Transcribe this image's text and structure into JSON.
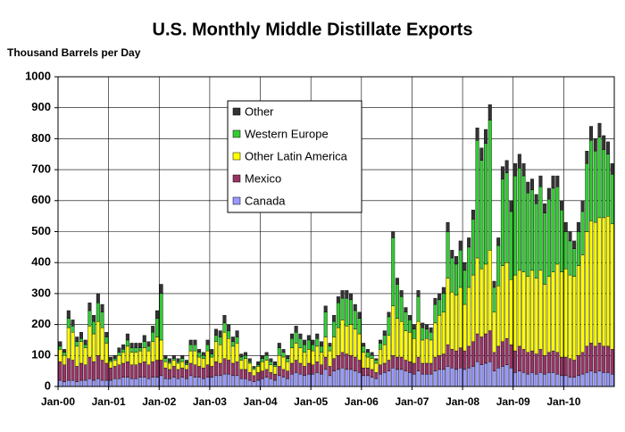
{
  "chart_data": {
    "type": "stacked-bar",
    "title": "U.S. Monthly Middle Distillate Exports",
    "y_label": "Thousand Barrels per Day",
    "categories": [
      "Jan-00",
      null,
      null,
      null,
      null,
      null,
      null,
      null,
      null,
      null,
      null,
      null,
      "Jan-01",
      null,
      null,
      null,
      null,
      null,
      null,
      null,
      null,
      null,
      null,
      null,
      "Jan-02",
      null,
      null,
      null,
      null,
      null,
      null,
      null,
      null,
      null,
      null,
      null,
      "Jan-03",
      null,
      null,
      null,
      null,
      null,
      null,
      null,
      null,
      null,
      null,
      null,
      "Jan-04",
      null,
      null,
      null,
      null,
      null,
      null,
      null,
      null,
      null,
      null,
      null,
      "Jan-05",
      null,
      null,
      null,
      null,
      null,
      null,
      null,
      null,
      null,
      null,
      null,
      "Jan-06",
      null,
      null,
      null,
      null,
      null,
      null,
      null,
      null,
      null,
      null,
      null,
      "Jan-07",
      null,
      null,
      null,
      null,
      null,
      null,
      null,
      null,
      null,
      null,
      null,
      "Jan-08",
      null,
      null,
      null,
      null,
      null,
      null,
      null,
      null,
      null,
      null,
      null,
      "Jan-09",
      null,
      null,
      null,
      null,
      null,
      null,
      null,
      null,
      null,
      null,
      null,
      "Jan-10",
      null,
      null,
      null,
      null,
      null,
      null,
      null,
      null,
      null,
      null,
      null
    ],
    "series": [
      {
        "name": "Canada",
        "color": "#9999ff",
        "values": [
          20,
          15,
          20,
          20,
          15,
          20,
          20,
          25,
          20,
          25,
          20,
          20,
          20,
          25,
          25,
          30,
          30,
          25,
          25,
          30,
          30,
          25,
          30,
          30,
          35,
          25,
          25,
          30,
          25,
          30,
          25,
          35,
          30,
          30,
          25,
          30,
          30,
          35,
          35,
          40,
          40,
          35,
          35,
          25,
          25,
          20,
          15,
          20,
          25,
          30,
          25,
          20,
          35,
          30,
          25,
          40,
          45,
          40,
          35,
          40,
          40,
          45,
          40,
          55,
          35,
          50,
          55,
          60,
          55,
          55,
          50,
          45,
          35,
          35,
          30,
          25,
          40,
          45,
          50,
          60,
          55,
          55,
          50,
          45,
          40,
          50,
          40,
          40,
          40,
          50,
          55,
          55,
          65,
          60,
          55,
          60,
          55,
          60,
          65,
          80,
          70,
          75,
          80,
          50,
          60,
          65,
          70,
          60,
          45,
          50,
          45,
          40,
          45,
          40,
          45,
          40,
          45,
          45,
          40,
          35,
          35,
          30,
          30,
          35,
          40,
          45,
          50,
          45,
          50,
          45,
          45,
          40
        ]
      },
      {
        "name": "Mexico",
        "color": "#993366",
        "values": [
          60,
          55,
          70,
          65,
          50,
          55,
          50,
          70,
          60,
          75,
          65,
          55,
          40,
          40,
          45,
          45,
          50,
          45,
          45,
          45,
          50,
          45,
          50,
          55,
          50,
          35,
          30,
          35,
          30,
          30,
          30,
          40,
          40,
          35,
          35,
          40,
          35,
          45,
          40,
          50,
          45,
          40,
          45,
          30,
          30,
          25,
          20,
          25,
          25,
          25,
          20,
          20,
          30,
          25,
          25,
          35,
          40,
          35,
          30,
          35,
          30,
          35,
          30,
          40,
          30,
          40,
          45,
          50,
          50,
          45,
          45,
          40,
          25,
          25,
          25,
          20,
          30,
          30,
          35,
          40,
          40,
          40,
          35,
          35,
          35,
          45,
          35,
          35,
          35,
          45,
          45,
          50,
          70,
          60,
          60,
          65,
          60,
          70,
          80,
          90,
          90,
          95,
          100,
          60,
          70,
          80,
          85,
          75,
          70,
          80,
          75,
          70,
          70,
          65,
          75,
          60,
          65,
          70,
          70,
          60,
          60,
          60,
          55,
          65,
          70,
          85,
          90,
          85,
          90,
          85,
          85,
          80
        ]
      },
      {
        "name": "Other Latin America",
        "color": "#ffff00",
        "values": [
          40,
          30,
          100,
          90,
          65,
          70,
          55,
          100,
          90,
          110,
          105,
          65,
          20,
          20,
          30,
          35,
          50,
          40,
          40,
          40,
          45,
          45,
          65,
          75,
          65,
          20,
          20,
          20,
          20,
          20,
          15,
          40,
          45,
          30,
          30,
          45,
          30,
          65,
          60,
          85,
          70,
          55,
          60,
          30,
          35,
          30,
          20,
          20,
          30,
          30,
          25,
          25,
          35,
          40,
          30,
          50,
          55,
          50,
          45,
          45,
          45,
          50,
          40,
          65,
          50,
          70,
          90,
          105,
          90,
          100,
          90,
          85,
          50,
          35,
          35,
          30,
          50,
          60,
          80,
          160,
          125,
          115,
          95,
          95,
          80,
          115,
          75,
          80,
          75,
          110,
          130,
          135,
          215,
          185,
          180,
          195,
          150,
          190,
          215,
          245,
          220,
          225,
          260,
          130,
          195,
          245,
          245,
          210,
          245,
          245,
          250,
          245,
          260,
          245,
          255,
          230,
          245,
          255,
          285,
          275,
          285,
          270,
          270,
          290,
          315,
          370,
          395,
          400,
          405,
          415,
          420,
          405
        ]
      },
      {
        "name": "Western Europe",
        "color": "#33cc33",
        "values": [
          10,
          10,
          30,
          20,
          15,
          10,
          10,
          50,
          40,
          60,
          50,
          20,
          5,
          5,
          10,
          10,
          20,
          15,
          15,
          10,
          20,
          15,
          30,
          60,
          150,
          10,
          5,
          5,
          5,
          10,
          5,
          20,
          20,
          15,
          10,
          20,
          10,
          20,
          25,
          30,
          25,
          15,
          20,
          10,
          10,
          5,
          5,
          5,
          10,
          15,
          10,
          5,
          25,
          15,
          10,
          30,
          35,
          30,
          25,
          30,
          20,
          25,
          20,
          80,
          15,
          50,
          80,
          70,
          90,
          80,
          60,
          50,
          20,
          15,
          10,
          10,
          20,
          30,
          60,
          220,
          110,
          80,
          60,
          40,
          30,
          80,
          40,
          30,
          25,
          60,
          50,
          60,
          150,
          110,
          100,
          120,
          110,
          130,
          180,
          380,
          350,
          390,
          420,
          80,
          130,
          280,
          290,
          220,
          320,
          330,
          310,
          270,
          260,
          240,
          270,
          230,
          250,
          270,
          250,
          200,
          120,
          110,
          90,
          110,
          140,
          220,
          260,
          230,
          260,
          220,
          200,
          160
        ]
      },
      {
        "name": "Other",
        "color": "#333333",
        "values": [
          15,
          10,
          25,
          20,
          15,
          20,
          15,
          25,
          20,
          30,
          25,
          15,
          10,
          10,
          15,
          15,
          20,
          15,
          15,
          15,
          20,
          15,
          20,
          25,
          30,
          10,
          10,
          10,
          10,
          10,
          10,
          15,
          15,
          10,
          10,
          15,
          15,
          20,
          20,
          25,
          20,
          15,
          20,
          10,
          10,
          10,
          5,
          10,
          10,
          10,
          10,
          10,
          15,
          10,
          10,
          15,
          20,
          15,
          15,
          15,
          15,
          15,
          15,
          20,
          10,
          20,
          20,
          25,
          25,
          20,
          20,
          20,
          10,
          10,
          10,
          5,
          10,
          15,
          15,
          20,
          20,
          20,
          15,
          15,
          15,
          20,
          15,
          15,
          15,
          20,
          20,
          20,
          30,
          25,
          25,
          30,
          25,
          30,
          30,
          40,
          40,
          45,
          50,
          20,
          25,
          40,
          40,
          35,
          40,
          45,
          40,
          35,
          35,
          30,
          35,
          30,
          35,
          40,
          35,
          30,
          30,
          30,
          25,
          30,
          35,
          40,
          45,
          40,
          45,
          45,
          40,
          35
        ]
      }
    ],
    "ylim": [
      0,
      1000
    ],
    "yticks": [
      0,
      100,
      200,
      300,
      400,
      500,
      600,
      700,
      800,
      900,
      1000
    ],
    "grid": true,
    "legend": "top-center"
  }
}
